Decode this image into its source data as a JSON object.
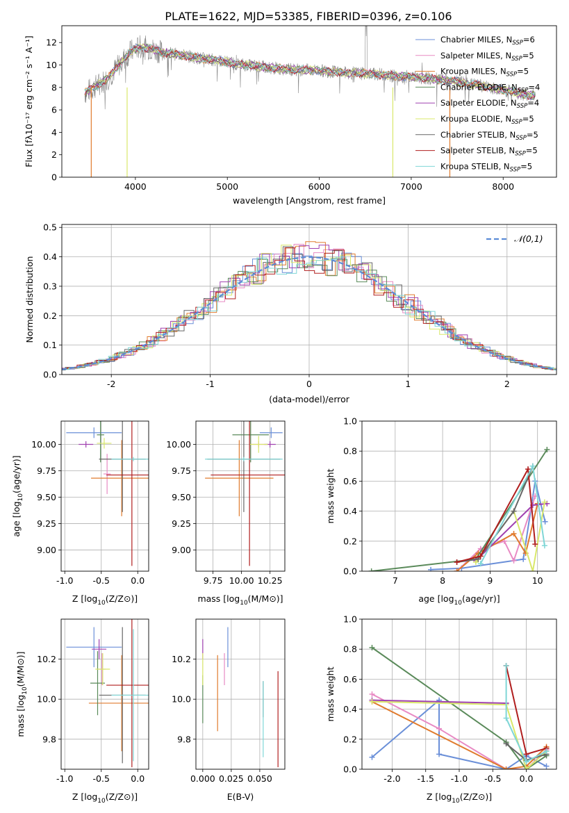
{
  "figure": {
    "title": "PLATE=1622, MJD=53385, FIBERID=0396, z=0.106"
  },
  "colors": {
    "Chabrier MILES": "#6a8fd8",
    "Salpeter MILES": "#e88ac4",
    "Kroupa MILES": "#e07b2e",
    "Chabrier ELODIE": "#5a8a5a",
    "Salpeter ELODIE": "#a040b0",
    "Kroupa ELODIE": "#d9e86a",
    "Chabrier STELIB": "#666666",
    "Salpeter STELIB": "#b01e1e",
    "Kroupa STELIB": "#7fd6d6",
    "data": "#888888",
    "normal": "#5b8bd6"
  },
  "chart_data": [
    {
      "id": "spectrum",
      "type": "line",
      "xlabel": "wavelength [Angstrom, rest frame]",
      "ylabel": "Flux [fλ10⁻¹⁷ erg cm⁻² s⁻¹ A⁻¹]",
      "xlim": [
        3200,
        8580
      ],
      "ylim": [
        0,
        13.5
      ],
      "xticks": [
        4000,
        5000,
        6000,
        7000,
        8000
      ],
      "yticks": [
        0,
        2,
        4,
        6,
        8,
        10,
        12
      ],
      "grid": false,
      "legend_position": "top-right",
      "legend": [
        {
          "base": "Chabrier MILES, N",
          "sub": "SSP",
          "val": "=6"
        },
        {
          "base": "Salpeter MILES, N",
          "sub": "SSP",
          "val": "=5"
        },
        {
          "base": "Kroupa MILES, N",
          "sub": "SSP",
          "val": "=5"
        },
        {
          "base": "Chabrier ELODIE, N",
          "sub": "SSP",
          "val": "=4"
        },
        {
          "base": "Salpeter ELODIE, N",
          "sub": "SSP",
          "val": "=4"
        },
        {
          "base": "Kroupa ELODIE, N",
          "sub": "SSP",
          "val": "=5"
        },
        {
          "base": "Chabrier STELIB, N",
          "sub": "SSP",
          "val": "=5"
        },
        {
          "base": "Salpeter STELIB, N",
          "sub": "SSP",
          "val": "=5"
        },
        {
          "base": "Kroupa STELIB, N",
          "sub": "SSP",
          "val": "=5"
        }
      ],
      "continuum": {
        "x": [
          3450,
          3550,
          3700,
          3850,
          3950,
          4050,
          4150,
          4300,
          4500,
          4700,
          4900,
          5100,
          5400,
          5700,
          6000,
          6300,
          6600,
          6900,
          7200,
          7500,
          7800,
          8100,
          8300
        ],
        "y": [
          7.5,
          8.0,
          8.8,
          10.3,
          11.2,
          11.6,
          11.5,
          11.1,
          10.9,
          10.6,
          10.4,
          10.1,
          9.8,
          9.6,
          9.5,
          9.3,
          9.2,
          9.0,
          8.8,
          8.5,
          8.1,
          7.6,
          7.3
        ]
      }
    },
    {
      "id": "residuals",
      "type": "bar",
      "xlabel": "(data-model)/error",
      "ylabel": "Normed distribution",
      "xlim": [
        -2.5,
        2.5
      ],
      "ylim": [
        0,
        0.51
      ],
      "xticks": [
        -2,
        -1,
        0,
        1,
        2
      ],
      "yticks": [
        0.0,
        0.1,
        0.2,
        0.3,
        0.4,
        0.5
      ],
      "grid": true,
      "legend_position": "top-right",
      "bin_width": 0.1,
      "normal_label": "𝒩(0,1)",
      "sigma": 1.0
    },
    {
      "id": "age-vs-Z",
      "type": "scatter",
      "xlabel_base": "Z [log",
      "xlabel_sub": "10",
      "xlabel_rest": "(Z/Z⊙)]",
      "ylabel_base": "age  [log",
      "ylabel_sub": "10",
      "ylabel_rest": "(age/yr)]",
      "xlim": [
        -1.05,
        0.15
      ],
      "ylim": [
        8.8,
        10.22
      ],
      "xticks": [
        -1.0,
        -0.5,
        0.0
      ],
      "yticks": [
        9.0,
        9.25,
        9.5,
        9.75,
        10.0
      ],
      "points": [
        {
          "model": "Chabrier MILES",
          "x": -0.6,
          "y": 10.11,
          "xerr": 0.38,
          "yerr": 0.05
        },
        {
          "model": "Salpeter MILES",
          "x": -0.42,
          "y": 9.72,
          "xerr": 0.05,
          "yerr": 0.19
        },
        {
          "model": "Kroupa MILES",
          "x": -0.22,
          "y": 9.68,
          "xerr": 0.42,
          "yerr": 0.36
        },
        {
          "model": "Chabrier ELODIE",
          "x": -0.51,
          "y": 10.09,
          "xerr": 0.05,
          "yerr": 0.26
        },
        {
          "model": "Salpeter ELODIE",
          "x": -0.71,
          "y": 10.0,
          "xerr": 0.1,
          "yerr": 0.03
        },
        {
          "model": "Kroupa ELODIE",
          "x": -0.46,
          "y": 10.01,
          "xerr": 0.1,
          "yerr": 0.05
        },
        {
          "model": "Chabrier STELIB",
          "x": -0.21,
          "y": 9.86,
          "xerr": 0.32,
          "yerr": 0.5
        },
        {
          "model": "Salpeter STELIB",
          "x": -0.08,
          "y": 9.71,
          "xerr": 0.35,
          "yerr": 0.86
        },
        {
          "model": "Kroupa STELIB",
          "x": -0.06,
          "y": 9.86,
          "xerr": 0.3,
          "yerr": 0.02
        }
      ]
    },
    {
      "id": "age-vs-mass",
      "type": "scatter",
      "xlabel_base": "mass [log",
      "xlabel_sub": "10",
      "xlabel_rest": "(M/M⊙)]",
      "xlim": [
        9.6,
        10.38
      ],
      "ylim": [
        8.8,
        10.22
      ],
      "xticks": [
        9.75,
        10.0,
        10.25
      ],
      "yticks": [
        9.0,
        9.25,
        9.5,
        9.75,
        10.0
      ],
      "points": [
        {
          "model": "Chabrier MILES",
          "x": 10.26,
          "y": 10.11,
          "xerr": 0.1,
          "yerr": 0.05
        },
        {
          "model": "Salpeter MILES",
          "x": 10.15,
          "y": 10.0,
          "xerr": 0.08,
          "yerr": 0.03
        },
        {
          "model": "Kroupa MILES",
          "x": 9.98,
          "y": 9.68,
          "xerr": 0.3,
          "yerr": 0.36
        },
        {
          "model": "Chabrier ELODIE",
          "x": 10.08,
          "y": 10.09,
          "xerr": 0.16,
          "yerr": 0.26
        },
        {
          "model": "Salpeter ELODIE",
          "x": 10.25,
          "y": 10.0,
          "xerr": 0.05,
          "yerr": 0.03
        },
        {
          "model": "Kroupa ELODIE",
          "x": 10.15,
          "y": 10.0,
          "xerr": 0.08,
          "yerr": 0.08
        },
        {
          "model": "Chabrier STELIB",
          "x": 10.02,
          "y": 9.86,
          "xerr": 0.32,
          "yerr": 0.5
        },
        {
          "model": "Salpeter STELIB",
          "x": 10.07,
          "y": 9.71,
          "xerr": 0.34,
          "yerr": 0.86
        },
        {
          "model": "Kroupa STELIB",
          "x": 10.02,
          "y": 9.86,
          "xerr": 0.34,
          "yerr": 0.02
        }
      ]
    },
    {
      "id": "weight-vs-age",
      "type": "line",
      "xlabel_base": "age  [log",
      "xlabel_sub": "10",
      "xlabel_rest": "(age/yr)]",
      "ylabel": "mass weight",
      "xlim": [
        6.3,
        10.4
      ],
      "ylim": [
        0,
        1.0
      ],
      "xticks": [
        7,
        8,
        9,
        10
      ],
      "yticks": [
        0.0,
        0.2,
        0.4,
        0.6,
        0.8,
        1.0
      ],
      "series": [
        {
          "model": "Chabrier MILES",
          "x": [
            7.75,
            8.4,
            9.7,
            9.95,
            10.16
          ],
          "y": [
            0.01,
            0.02,
            0.08,
            0.6,
            0.33
          ]
        },
        {
          "model": "Salpeter MILES",
          "x": [
            8.3,
            8.8,
            9.3,
            9.5,
            9.95
          ],
          "y": [
            0.0,
            0.15,
            0.2,
            0.07,
            0.5
          ]
        },
        {
          "model": "Kroupa MILES",
          "x": [
            8.3,
            8.75,
            9.5,
            9.75,
            10.0
          ],
          "y": [
            0.0,
            0.12,
            0.25,
            0.12,
            0.45
          ]
        },
        {
          "model": "Chabrier ELODIE",
          "x": [
            6.5,
            8.7,
            10.2
          ],
          "y": [
            0.0,
            0.08,
            0.81
          ]
        },
        {
          "model": "Salpeter ELODIE",
          "x": [
            8.7,
            9.9,
            10.2
          ],
          "y": [
            0.07,
            0.44,
            0.45
          ]
        },
        {
          "model": "Kroupa ELODIE",
          "x": [
            8.7,
            9.5,
            9.9,
            10.15
          ],
          "y": [
            0.06,
            0.4,
            0.0,
            0.46
          ]
        },
        {
          "model": "Chabrier STELIB",
          "x": [
            8.3,
            8.75,
            9.5,
            9.9
          ],
          "y": [
            0.06,
            0.08,
            0.4,
            0.7
          ]
        },
        {
          "model": "Salpeter STELIB",
          "x": [
            8.3,
            8.8,
            9.8,
            9.95
          ],
          "y": [
            0.06,
            0.1,
            0.68,
            0.18
          ]
        },
        {
          "model": "Kroupa STELIB",
          "x": [
            8.8,
            9.9,
            10.15
          ],
          "y": [
            0.05,
            0.7,
            0.17
          ]
        }
      ]
    },
    {
      "id": "mass-vs-Z",
      "type": "scatter",
      "xlabel_base": "Z [log",
      "xlabel_sub": "10",
      "xlabel_rest": "(Z/Z⊙)]",
      "ylabel_base": "mass [log",
      "ylabel_sub": "10",
      "ylabel_rest": "(M/M⊙)]",
      "xlim": [
        -1.05,
        0.15
      ],
      "ylim": [
        9.65,
        10.4
      ],
      "xticks": [
        -1.0,
        -0.5,
        0.0
      ],
      "yticks": [
        9.8,
        10.0,
        10.2
      ],
      "points": [
        {
          "model": "Chabrier MILES",
          "x": -0.6,
          "y": 10.26,
          "xerr": 0.38,
          "yerr": 0.1
        },
        {
          "model": "Salpeter MILES",
          "x": -0.49,
          "y": 10.15,
          "xerr": 0.05,
          "yerr": 0.08
        },
        {
          "model": "Kroupa MILES",
          "x": -0.22,
          "y": 9.98,
          "xerr": 0.45,
          "yerr": 0.24
        },
        {
          "model": "Chabrier ELODIE",
          "x": -0.55,
          "y": 10.08,
          "xerr": 0.1,
          "yerr": 0.16
        },
        {
          "model": "Salpeter ELODIE",
          "x": -0.53,
          "y": 10.25,
          "xerr": 0.1,
          "yerr": 0.05
        },
        {
          "model": "Kroupa ELODIE",
          "x": -0.48,
          "y": 10.15,
          "xerr": 0.1,
          "yerr": 0.08
        },
        {
          "model": "Chabrier STELIB",
          "x": -0.21,
          "y": 10.02,
          "xerr": 0.32,
          "yerr": 0.34
        },
        {
          "model": "Salpeter STELIB",
          "x": -0.08,
          "y": 10.07,
          "xerr": 0.35,
          "yerr": 0.41
        },
        {
          "model": "Kroupa STELIB",
          "x": -0.06,
          "y": 10.02,
          "xerr": 0.3,
          "yerr": 0.33
        }
      ]
    },
    {
      "id": "mass-vs-ebv",
      "type": "scatter",
      "xlabel": "E(B-V)",
      "xlim": [
        -0.006,
        0.072
      ],
      "ylim": [
        9.65,
        10.4
      ],
      "xticks": [
        0.0,
        0.025,
        0.05
      ],
      "xticklabels": [
        "0.000",
        "0.025",
        "0.050"
      ],
      "yticks": [
        9.8,
        10.0,
        10.2
      ],
      "points": [
        {
          "model": "Chabrier MILES",
          "x": 0.022,
          "y": 10.26,
          "yerr": 0.1
        },
        {
          "model": "Salpeter MILES",
          "x": 0.019,
          "y": 10.15,
          "yerr": 0.08
        },
        {
          "model": "Kroupa MILES",
          "x": 0.013,
          "y": 10.03,
          "yerr": 0.19
        },
        {
          "model": "Chabrier ELODIE",
          "x": 0.0,
          "y": 10.0,
          "yerr": 0.12
        },
        {
          "model": "Salpeter ELODIE",
          "x": 0.0,
          "y": 10.25,
          "yerr": 0.05
        },
        {
          "model": "Kroupa ELODIE",
          "x": 0.0,
          "y": 10.15,
          "yerr": 0.08
        },
        {
          "model": "Chabrier STELIB",
          "x": 0.053,
          "y": 10.0,
          "yerr": 0.09
        },
        {
          "model": "Salpeter STELIB",
          "x": 0.066,
          "y": 9.9,
          "yerr": 0.24
        },
        {
          "model": "Kroupa STELIB",
          "x": 0.053,
          "y": 9.9,
          "yerr": 0.19
        }
      ]
    },
    {
      "id": "weight-vs-Z",
      "type": "line",
      "xlabel_base": "Z [log",
      "xlabel_sub": "10",
      "xlabel_rest": "(Z/Z⊙)]",
      "ylabel": "mass weight",
      "xlim": [
        -2.45,
        0.45
      ],
      "ylim": [
        0,
        1.0
      ],
      "xticks": [
        -2.0,
        -1.5,
        -1.0,
        -0.5,
        0.0
      ],
      "yticks": [
        0.0,
        0.2,
        0.4,
        0.6,
        0.8,
        1.0
      ],
      "series": [
        {
          "model": "Chabrier MILES",
          "x": [
            -2.3,
            -1.3,
            -1.3,
            -0.3,
            0.0,
            0.3
          ],
          "y": [
            0.08,
            0.46,
            0.1,
            0.0,
            0.09,
            0.02
          ]
        },
        {
          "model": "Salpeter MILES",
          "x": [
            -2.3,
            -1.3,
            -0.3,
            0.0,
            0.3
          ],
          "y": [
            0.5,
            0.27,
            0.0,
            0.0,
            0.13
          ]
        },
        {
          "model": "Kroupa MILES",
          "x": [
            -2.3,
            -0.3,
            0.0,
            0.3
          ],
          "y": [
            0.45,
            0.0,
            0.02,
            0.15
          ]
        },
        {
          "model": "Chabrier ELODIE",
          "x": [
            -2.3,
            -0.3,
            0.0,
            0.3
          ],
          "y": [
            0.81,
            0.18,
            0.0,
            0.09
          ]
        },
        {
          "model": "Salpeter ELODIE",
          "x": [
            -2.3,
            -0.3,
            -0.3
          ],
          "y": [
            0.46,
            0.44,
            0.44
          ]
        },
        {
          "model": "Kroupa ELODIE",
          "x": [
            -2.3,
            -0.3,
            0.0,
            0.3
          ],
          "y": [
            0.45,
            0.43,
            0.0,
            0.12
          ]
        },
        {
          "model": "Chabrier STELIB",
          "x": [
            -0.3,
            0.0,
            0.3
          ],
          "y": [
            0.17,
            0.06,
            0.1
          ]
        },
        {
          "model": "Salpeter STELIB",
          "x": [
            -0.3,
            0.0,
            0.3
          ],
          "y": [
            0.69,
            0.1,
            0.14
          ]
        },
        {
          "model": "Kroupa STELIB",
          "x": [
            -0.3,
            -0.3,
            0.0,
            0.3
          ],
          "y": [
            0.69,
            0.34,
            0.05,
            0.12
          ]
        }
      ]
    }
  ]
}
